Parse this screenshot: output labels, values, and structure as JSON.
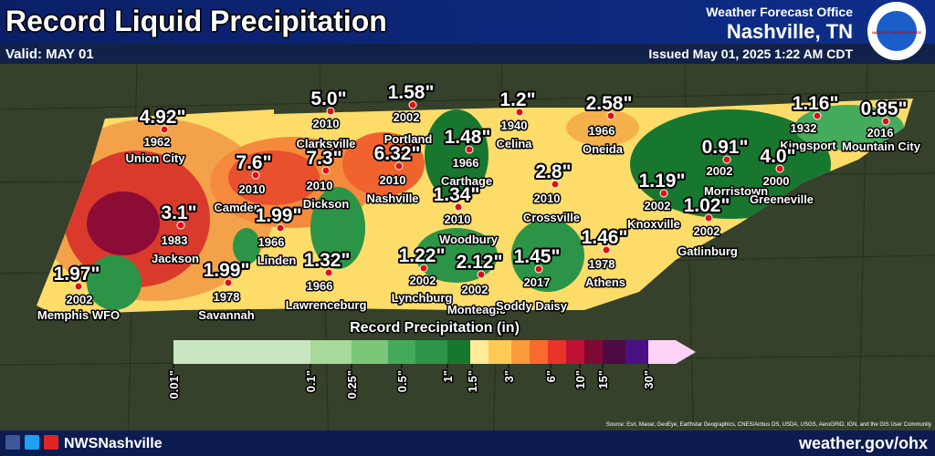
{
  "header": {
    "title": "Record Liquid Precipitation",
    "valid": "Valid: MAY 01",
    "office": "Weather Forecast Office",
    "location": "Nashville, TN",
    "issued": "Issued May 01, 2025 1:22 AM CDT",
    "logo": "NATIONAL WEATHER SERVICE"
  },
  "stations": [
    {
      "value": "4.92\"",
      "year": "1962",
      "name": "Union City"
    },
    {
      "value": "5.0\"",
      "year": "2010",
      "name": "Clarksville"
    },
    {
      "value": "1.58\"",
      "year": "2002",
      "name": "Portland"
    },
    {
      "value": "1.2\"",
      "year": "1940",
      "name": "Celina"
    },
    {
      "value": "2.58\"",
      "year": "1966",
      "name": "Oneida"
    },
    {
      "value": "1.16\"",
      "year": "1932",
      "name": "Kingsport"
    },
    {
      "value": "0.85\"",
      "year": "2016",
      "name": "Mountain City"
    },
    {
      "value": "7.6\"",
      "year": "2010",
      "name": "Camden"
    },
    {
      "value": "7.3\"",
      "year": "2010",
      "name": "Dickson"
    },
    {
      "value": "6.32\"",
      "year": "2010",
      "name": "Nashville"
    },
    {
      "value": "1.48\"",
      "year": "1966",
      "name": "Carthage"
    },
    {
      "value": "2.8\"",
      "year": "2010",
      "name": "Crossville"
    },
    {
      "value": "1.19\"",
      "year": "2002",
      "name": "Knoxville"
    },
    {
      "value": "0.91\"",
      "year": "2002",
      "name": "Morristown"
    },
    {
      "value": "4.0\"",
      "year": "2000",
      "name": "Greeneville"
    },
    {
      "value": "1.02\"",
      "year": "2002",
      "name": "Gatlinburg"
    },
    {
      "value": "3.1\"",
      "year": "1983",
      "name": "Jackson"
    },
    {
      "value": "1.99\"",
      "year": "1966",
      "name": "Linden"
    },
    {
      "value": "1.34\"",
      "year": "2010",
      "name": "Woodbury"
    },
    {
      "value": "1.46\"",
      "year": "1978",
      "name": "Athens"
    },
    {
      "value": "1.97\"",
      "year": "2002",
      "name": "Memphis WFO"
    },
    {
      "value": "1.99\"",
      "year": "1978",
      "name": "Savannah"
    },
    {
      "value": "1.32\"",
      "year": "1966",
      "name": "Lawrenceburg"
    },
    {
      "value": "1.22\"",
      "year": "2002",
      "name": "Lynchburg"
    },
    {
      "value": "2.12\"",
      "year": "2002",
      "name": "Monteagle"
    },
    {
      "value": "1.45\"",
      "year": "2017",
      "name": "Soddy Daisy"
    }
  ],
  "legend": {
    "title": "Record Precipitation  (in)",
    "labels": [
      "0.01\"",
      "0.1\"",
      "0.25\"",
      "0.5\"",
      "1\"",
      "1.5\"",
      "3\"",
      "6\"",
      "10\"",
      "15\"",
      "30\""
    ],
    "colors": [
      "#c8e6c0",
      "#a6d99a",
      "#7cc67a",
      "#44aa5c",
      "#2b9446",
      "#17772f",
      "#ffeb99",
      "#fdcb55",
      "#fd9a3c",
      "#f96a2e",
      "#e8332a",
      "#bf1134",
      "#7e0a33",
      "#4d0a47",
      "#4a1185",
      "#ffd3f7"
    ]
  },
  "footer": {
    "handle": "NWSNashville",
    "website": "weather.gov/ohx",
    "source": "Source: Esri, Maxar, GeoEye, Earthstar Geographics, CNES/Airbus DS, USDA, USGS, AeroGRID, IGN, and the GIS User Community"
  }
}
